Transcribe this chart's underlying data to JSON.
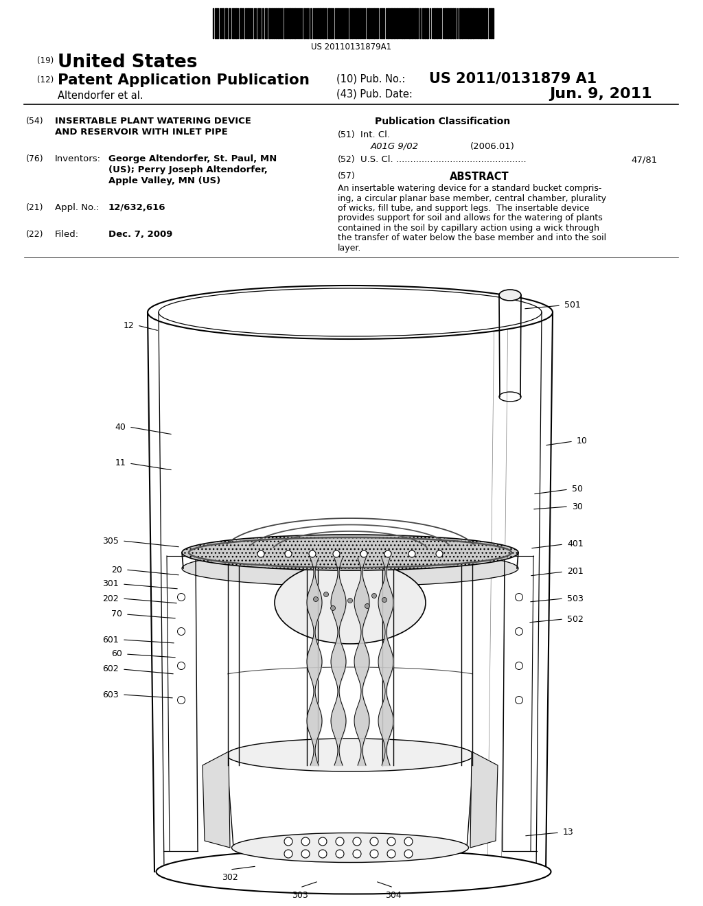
{
  "bg_color": "#ffffff",
  "barcode_text": "US 20110131879A1",
  "pub_no_value": "US 2011/0131879 A1",
  "pub_date_value": "Jun. 9, 2011",
  "field54_title1": "INSERTABLE PLANT WATERING DEVICE",
  "field54_title2": "AND RESERVOIR WITH INLET PIPE",
  "pub_class_title": "Publication Classification",
  "int_cl_value": "A01G 9/02",
  "int_cl_year": "(2006.01)",
  "us_cl_value": "47/81",
  "abstract_title": "ABSTRACT",
  "abstract_lines": [
    "An insertable watering device for a standard bucket compris-",
    "ing, a circular planar base member, central chamber, plurality",
    "of wicks, fill tube, and support legs.  The insertable device",
    "provides support for soil and allows for the watering of plants",
    "contained in the soil by capillary action using a wick through",
    "the transfer of water below the base member and into the soil",
    "layer."
  ],
  "inventors_value1": "George Altendorfer, St. Paul, MN",
  "inventors_value2": "(US); Perry Joseph Altendorfer,",
  "inventors_value3": "Apple Valley, MN (US)",
  "appl_num_value": "12/632,616",
  "filed_value": "Dec. 7, 2009"
}
